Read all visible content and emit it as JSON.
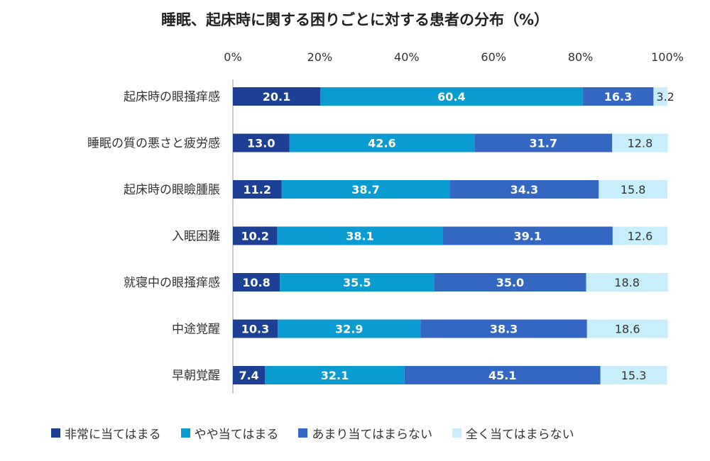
{
  "chart_data": {
    "type": "bar",
    "orientation": "horizontal",
    "stacked": "percent",
    "title": "睡眠、起床時に関する困りごとに対する患者の分布（%）",
    "xlim": [
      0,
      100
    ],
    "x_ticks": [
      "0%",
      "20%",
      "40%",
      "60%",
      "80%",
      "100%"
    ],
    "x_tick_values": [
      0,
      20,
      40,
      60,
      80,
      100
    ],
    "categories": [
      "起床時の眼掻痒感",
      "睡眠の質の悪さと疲労感",
      "起床時の眼瞼腫脹",
      "入眠困難",
      "就寝中の眼掻痒感",
      "中途覚醒",
      "早朝覚醒"
    ],
    "series": [
      {
        "name": "非常に当てはまる",
        "color": "#1d3f94",
        "label_color": "#ffffff",
        "values": [
          20.1,
          13.0,
          11.2,
          10.2,
          10.8,
          10.3,
          7.4
        ]
      },
      {
        "name": "やや当てはまる",
        "color": "#0a9bd0",
        "label_color": "#ffffff",
        "values": [
          60.4,
          42.6,
          38.7,
          38.1,
          35.5,
          32.9,
          32.1
        ]
      },
      {
        "name": "あまり当てはまらない",
        "color": "#3467c2",
        "label_color": "#ffffff",
        "values": [
          16.3,
          31.7,
          34.3,
          39.1,
          35.0,
          38.3,
          45.1
        ]
      },
      {
        "name": "全く当てはまらない",
        "color": "#c8eefb",
        "label_color": "#333333",
        "values": [
          3.2,
          12.8,
          15.8,
          12.6,
          18.8,
          18.6,
          15.3
        ]
      }
    ],
    "value_labels": [
      [
        "20.1",
        "60.4",
        "16.3",
        "3.2"
      ],
      [
        "13.0",
        "42.6",
        "31.7",
        "12.8"
      ],
      [
        "11.2",
        "38.7",
        "34.3",
        "15.8"
      ],
      [
        "10.2",
        "38.1",
        "39.1",
        "12.6"
      ],
      [
        "10.8",
        "35.5",
        "35.0",
        "18.8"
      ],
      [
        "10.3",
        "32.9",
        "38.3",
        "18.6"
      ],
      [
        "7.4",
        "32.1",
        "45.1",
        "15.3"
      ]
    ],
    "legend_position": "bottom",
    "grid": false
  }
}
